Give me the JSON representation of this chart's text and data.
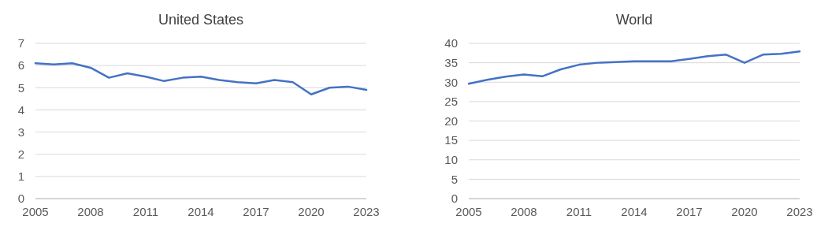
{
  "chart_data": [
    {
      "type": "line",
      "title": "United States",
      "x": [
        2005,
        2006,
        2007,
        2008,
        2009,
        2010,
        2011,
        2012,
        2013,
        2014,
        2015,
        2016,
        2017,
        2018,
        2019,
        2020,
        2021,
        2022,
        2023
      ],
      "series": [
        {
          "color": "#4472c4",
          "values": [
            6.1,
            6.05,
            6.1,
            5.9,
            5.45,
            5.65,
            5.5,
            5.3,
            5.45,
            5.5,
            5.35,
            5.25,
            5.2,
            5.35,
            5.25,
            4.7,
            5.0,
            5.05,
            4.9
          ]
        }
      ],
      "xlim": [
        2005,
        2023
      ],
      "xticks": [
        2005,
        2008,
        2011,
        2014,
        2017,
        2020,
        2023
      ],
      "ylim": [
        0,
        7
      ],
      "yticks": [
        0,
        1,
        2,
        3,
        4,
        5,
        6,
        7
      ],
      "grid": "y"
    },
    {
      "type": "line",
      "title": "World",
      "x": [
        2005,
        2006,
        2007,
        2008,
        2009,
        2010,
        2011,
        2012,
        2013,
        2014,
        2015,
        2016,
        2017,
        2018,
        2019,
        2020,
        2021,
        2022,
        2023
      ],
      "series": [
        {
          "color": "#4472c4",
          "values": [
            29.6,
            30.6,
            31.4,
            32.0,
            31.5,
            33.3,
            34.5,
            35.0,
            35.2,
            35.4,
            35.4,
            35.4,
            36.0,
            36.7,
            37.1,
            35.0,
            37.1,
            37.3,
            37.9
          ]
        }
      ],
      "xlim": [
        2005,
        2023
      ],
      "xticks": [
        2005,
        2008,
        2011,
        2014,
        2017,
        2020,
        2023
      ],
      "ylim": [
        0,
        40
      ],
      "yticks": [
        0,
        5,
        10,
        15,
        20,
        25,
        30,
        35,
        40
      ],
      "grid": "y"
    }
  ]
}
